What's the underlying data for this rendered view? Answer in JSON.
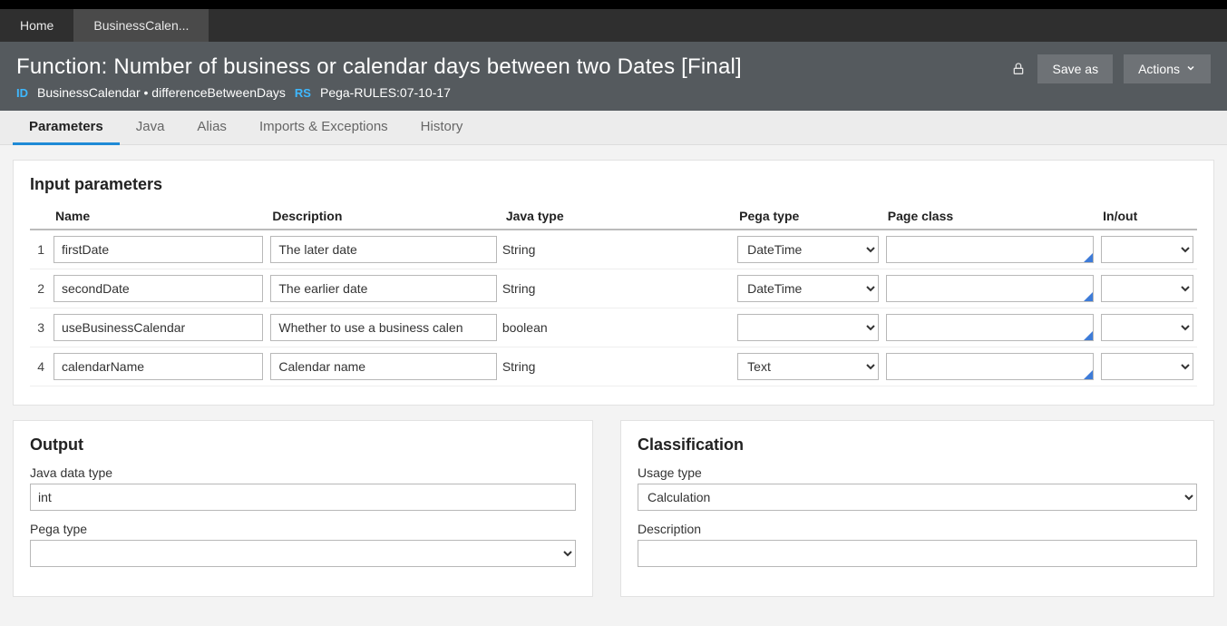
{
  "topNav": {
    "tabs": [
      {
        "label": "Home",
        "active": false
      },
      {
        "label": "BusinessCalen...",
        "active": true
      }
    ]
  },
  "ruleHeader": {
    "title": "Function: Number of business or calendar days between two Dates [Final]",
    "idLabel": "ID",
    "idValue": "BusinessCalendar • differenceBetweenDays",
    "rsLabel": "RS",
    "rsValue": "Pega-RULES:07-10-17",
    "saveAsLabel": "Save as",
    "actionsLabel": "Actions"
  },
  "sectionTabs": [
    {
      "label": "Parameters",
      "active": true
    },
    {
      "label": "Java",
      "active": false
    },
    {
      "label": "Alias",
      "active": false
    },
    {
      "label": "Imports & Exceptions",
      "active": false
    },
    {
      "label": "History",
      "active": false
    }
  ],
  "inputParams": {
    "title": "Input parameters",
    "headers": {
      "name": "Name",
      "description": "Description",
      "javaType": "Java type",
      "pegaType": "Pega type",
      "pageClass": "Page class",
      "inOut": "In/out"
    },
    "rows": [
      {
        "num": "1",
        "name": "firstDate",
        "description": "The later date",
        "javaType": "String",
        "pegaType": "DateTime",
        "pageClass": "",
        "inOut": ""
      },
      {
        "num": "2",
        "name": "secondDate",
        "description": "The earlier date",
        "javaType": "String",
        "pegaType": "DateTime",
        "pageClass": "",
        "inOut": ""
      },
      {
        "num": "3",
        "name": "useBusinessCalendar",
        "description": "Whether to use a business calen",
        "javaType": "boolean",
        "pegaType": "",
        "pageClass": "",
        "inOut": ""
      },
      {
        "num": "4",
        "name": "calendarName",
        "description": "Calendar name",
        "javaType": "String",
        "pegaType": "Text",
        "pageClass": "",
        "inOut": ""
      }
    ]
  },
  "output": {
    "title": "Output",
    "javaDataTypeLabel": "Java data type",
    "javaDataTypeValue": "int",
    "pegaTypeLabel": "Pega type",
    "pegaTypeValue": ""
  },
  "classification": {
    "title": "Classification",
    "usageTypeLabel": "Usage type",
    "usageTypeValue": "Calculation",
    "descriptionLabel": "Description",
    "descriptionValue": ""
  },
  "colors": {
    "accent": "#1f8ad6",
    "headerBg": "#555a5e",
    "navBg": "#2f2f2f",
    "pageBg": "#f3f3f3"
  },
  "columnWidths": {
    "num": "22px",
    "name": "240px",
    "description": "258px",
    "javaType": "258px",
    "pegaType": "164px",
    "pageClass": "238px",
    "inOut": "110px"
  }
}
